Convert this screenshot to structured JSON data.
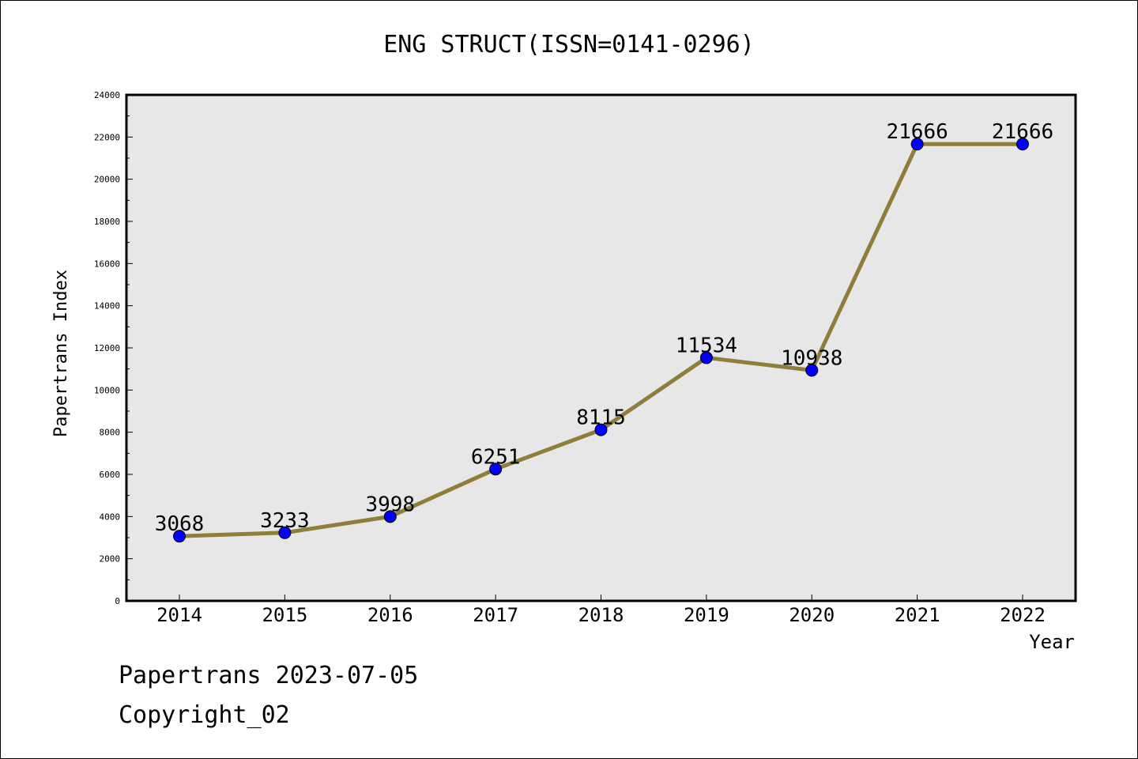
{
  "chart_data": {
    "type": "line",
    "title": "ENG STRUCT(ISSN=0141-0296)",
    "xlabel": "Year",
    "ylabel": "Papertrans Index",
    "x": [
      "2014",
      "2015",
      "2016",
      "2017",
      "2018",
      "2019",
      "2020",
      "2021",
      "2022"
    ],
    "series": [
      {
        "values": [
          3068,
          3233,
          3998,
          6251,
          8115,
          11534,
          10938,
          21666,
          21666
        ]
      }
    ],
    "data_labels": [
      "3068",
      "3233",
      "3998",
      "6251",
      "8115",
      "11534",
      "10938",
      "21666",
      "21666"
    ],
    "ylim": [
      0,
      24000
    ],
    "yticks": [
      0,
      2000,
      4000,
      6000,
      8000,
      10000,
      12000,
      14000,
      16000,
      18000,
      20000,
      22000,
      24000
    ],
    "grid": false,
    "line_color": "#8e7e3a",
    "marker_color": "#0000ff",
    "plot_background": "#e7e7e7"
  },
  "footer": {
    "line1": "Papertrans 2023-07-05",
    "line2": "Copyright_02"
  }
}
